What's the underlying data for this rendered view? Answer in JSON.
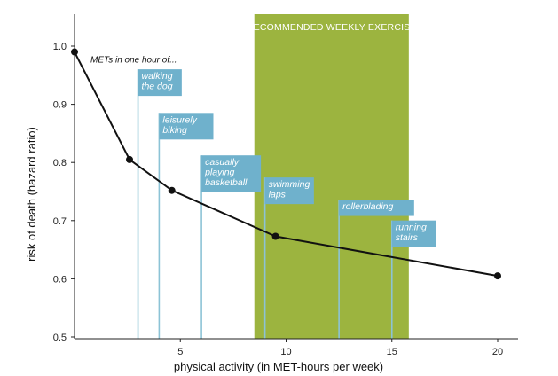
{
  "chart_data": {
    "type": "line",
    "x": [
      0,
      2.6,
      4.6,
      9.5,
      20
    ],
    "y": [
      0.99,
      0.805,
      0.752,
      0.673,
      0.605
    ],
    "xlabel": "physical activity (in MET-hours per week)",
    "ylabel": "risk of death (hazard ratio)",
    "xlim": [
      0,
      21
    ],
    "ylim": [
      0.5,
      1.0
    ],
    "xticks": [
      5,
      10,
      15,
      20
    ],
    "yticks": [
      0.5,
      0.6,
      0.7,
      0.8,
      0.9,
      1.0
    ],
    "xtick_labels": [
      "5",
      "10",
      "15",
      "20"
    ],
    "ytick_labels": [
      "0.5",
      "0.6",
      "0.7",
      "0.8",
      "0.9",
      "1.0"
    ],
    "grid": false,
    "annotation": "METs in one hour of...",
    "recommended_band": {
      "label": "RECOMMENDED WEEKLY EXERCISE",
      "x_start": 8.5,
      "x_end": 15.8
    },
    "activities": [
      {
        "label": "walking the dog",
        "lines": [
          "walking",
          "the dog"
        ],
        "x": 3.0,
        "label_y": 0.948
      },
      {
        "label": "leisurely biking",
        "lines": [
          "leisurely",
          "biking"
        ],
        "x": 4.0,
        "label_y": 0.873
      },
      {
        "label": "casually playing basketball",
        "lines": [
          "casually",
          "playing",
          "basketball"
        ],
        "x": 6.0,
        "label_y": 0.8
      },
      {
        "label": "swimming laps",
        "lines": [
          "swimming",
          "laps"
        ],
        "x": 9.0,
        "label_y": 0.762
      },
      {
        "label": "rollerblading",
        "lines": [
          "rollerblading"
        ],
        "x": 12.5,
        "label_y": 0.724
      },
      {
        "label": "running stairs",
        "lines": [
          "running",
          "stairs"
        ],
        "x": 15.0,
        "label_y": 0.688
      }
    ],
    "colors": {
      "band": "#9CB43F",
      "callout": "#6FB1CC",
      "leader": "#8CC3D6",
      "line": "#111111",
      "axis": "#222222"
    }
  }
}
